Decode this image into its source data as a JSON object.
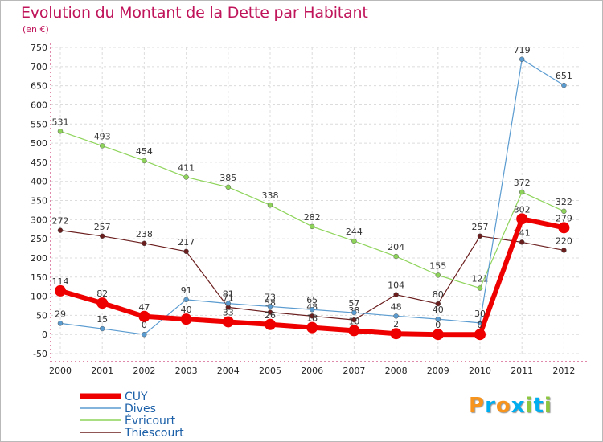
{
  "title": "Evolution du Montant de la Dette par Habitant",
  "subtitle": "(en €)",
  "logo": {
    "letters": [
      "P",
      "r",
      "o",
      "x",
      "i",
      "t",
      "i"
    ],
    "colors": [
      "#f7941d",
      "#00aeef",
      "#f7941d",
      "#00aeef",
      "#8dc63f",
      "#00aeef",
      "#8dc63f"
    ]
  },
  "chart_data": {
    "type": "line",
    "x": [
      "2000",
      "2001",
      "2002",
      "2003",
      "2004",
      "2005",
      "2006",
      "2007",
      "2008",
      "2009",
      "2010",
      "2011",
      "2012"
    ],
    "ylim": [
      -50,
      750
    ],
    "yticks": [
      -50,
      0,
      50,
      100,
      150,
      200,
      250,
      300,
      350,
      400,
      450,
      500,
      550,
      600,
      650,
      700,
      750
    ],
    "grid": true,
    "legend_position": "bottom-left",
    "series": [
      {
        "name": "Thiescourt",
        "color": "#6b1e1e",
        "width": 1.2,
        "values": [
          272,
          257,
          238,
          217,
          71,
          58,
          48,
          38,
          104,
          80,
          257,
          241,
          220
        ],
        "labels": [
          "272",
          "257",
          "238",
          "217",
          "71",
          "58",
          "48",
          "38",
          "104",
          "80",
          "257",
          "241",
          "220"
        ]
      },
      {
        "name": "Évricourt",
        "color": "#8ed45a",
        "width": 1.2,
        "values": [
          531,
          493,
          454,
          411,
          385,
          338,
          282,
          244,
          204,
          155,
          121,
          372,
          322
        ],
        "labels": [
          "531",
          "493",
          "454",
          "411",
          "385",
          "338",
          "282",
          "244",
          "204",
          "155",
          "121",
          "372",
          "322"
        ]
      },
      {
        "name": "Dives",
        "color": "#5a9bd0",
        "width": 1.2,
        "values": [
          29,
          15,
          0,
          91,
          81,
          73,
          65,
          57,
          48,
          40,
          30,
          719,
          651
        ],
        "labels": [
          "29",
          "15",
          "0",
          "91",
          "81",
          "73",
          "65",
          "57",
          "48",
          "40",
          "30",
          "719",
          "651"
        ]
      },
      {
        "name": "CUY",
        "color": "#ee0000",
        "width": 6,
        "values": [
          114,
          82,
          47,
          40,
          33,
          26,
          18,
          10,
          2,
          0,
          0,
          302,
          279
        ],
        "labels": [
          "114",
          "82",
          "47",
          "40",
          "33",
          "26",
          "18",
          "10",
          "2",
          "0",
          "0",
          "302",
          "279"
        ]
      }
    ],
    "legend": [
      "CUY",
      "Dives",
      "Évricourt",
      "Thiescourt"
    ]
  }
}
